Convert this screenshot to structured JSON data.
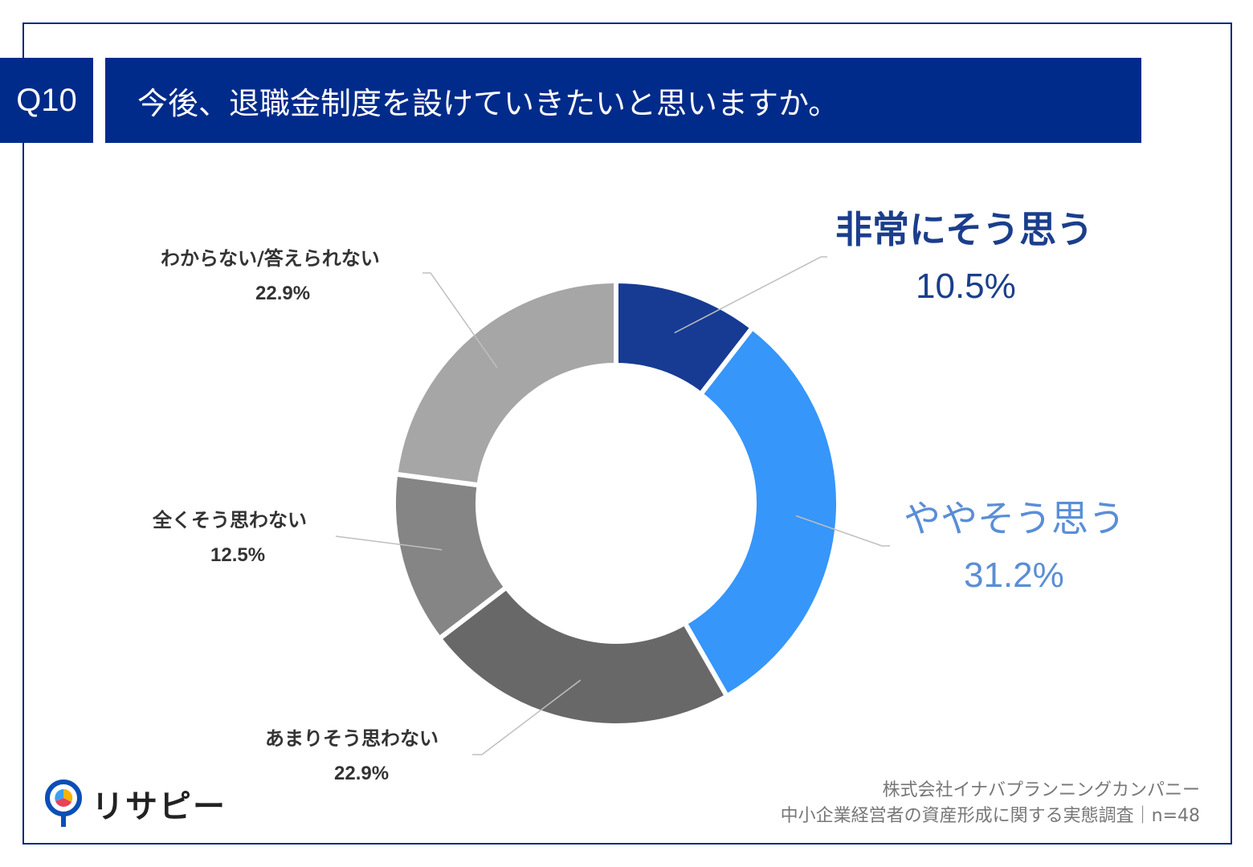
{
  "question": {
    "number": "Q10",
    "text": "今後、退職金制度を設けていきたいと思いますか。"
  },
  "chart_data": {
    "type": "pie",
    "donut": true,
    "categories": [
      "非常にそう思う",
      "ややそう思う",
      "あまりそう思わない",
      "全くそう思わない",
      "わからない/答えられない"
    ],
    "values": [
      10.5,
      31.2,
      22.9,
      12.5,
      22.9
    ],
    "value_labels": [
      "10.5%",
      "31.2%",
      "22.9%",
      "12.5%",
      "22.9%"
    ],
    "colors": [
      "#173b93",
      "#3696f9",
      "#686868",
      "#858585",
      "#a6a6a6"
    ],
    "label_colors": [
      "#1b3e8c",
      "#5a8ed6",
      "#333333",
      "#333333",
      "#333333"
    ]
  },
  "source": {
    "line1": "株式会社イナバプランニングカンパニー",
    "line2": "中小企業経営者の資産形成に関する実態調査｜n=48"
  },
  "logo": {
    "text": "リサピー"
  }
}
